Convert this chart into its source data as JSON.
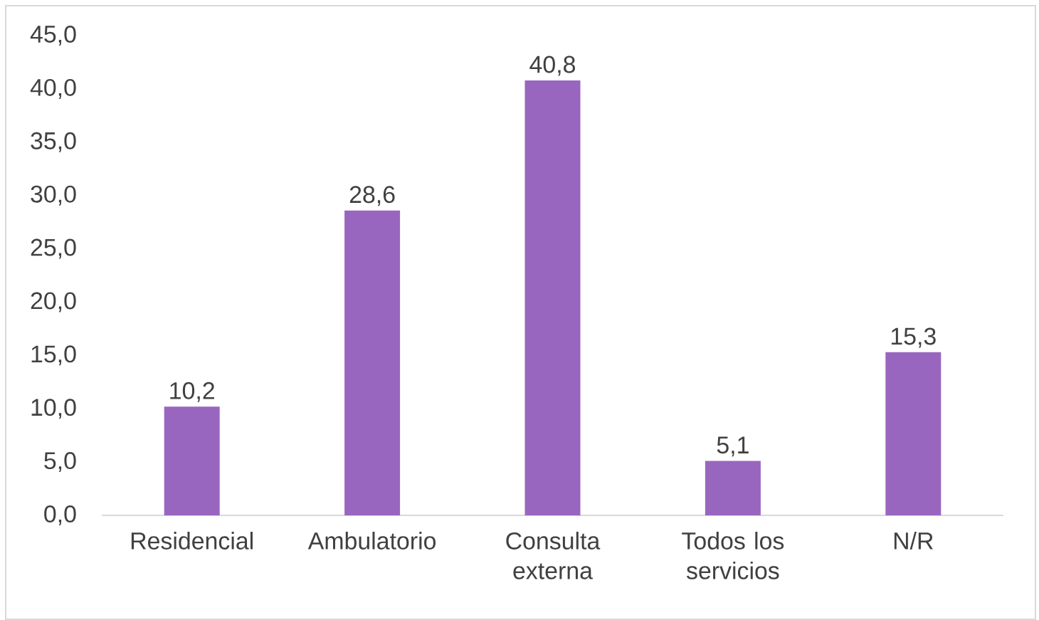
{
  "chart_data": {
    "type": "bar",
    "categories": [
      "Residencial",
      "Ambulatorio",
      "Consulta externa",
      "Todos los servicios",
      "N/R"
    ],
    "values": [
      10.2,
      28.6,
      40.8,
      5.1,
      15.3
    ],
    "value_labels": [
      "10,2",
      "28,6",
      "40,8",
      "5,1",
      "15,3"
    ],
    "color": "#9966bf",
    "ylim": [
      0,
      45
    ],
    "yticks": [
      {
        "value": 0,
        "label": "0,0"
      },
      {
        "value": 5,
        "label": "5,0"
      },
      {
        "value": 10,
        "label": "10,0"
      },
      {
        "value": 15,
        "label": "15,0"
      },
      {
        "value": 20,
        "label": "20,0"
      },
      {
        "value": 25,
        "label": "25,0"
      },
      {
        "value": 30,
        "label": "30,0"
      },
      {
        "value": 35,
        "label": "35,0"
      },
      {
        "value": 40,
        "label": "40,0"
      },
      {
        "value": 45,
        "label": "45,0"
      }
    ]
  }
}
